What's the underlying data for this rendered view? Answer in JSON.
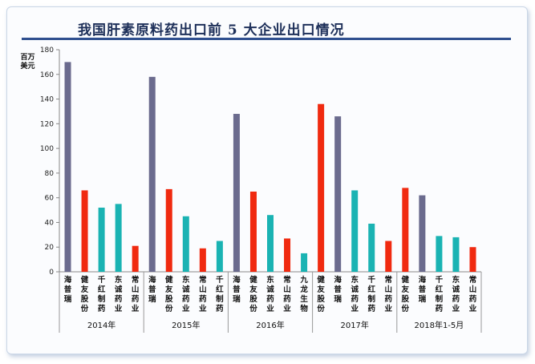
{
  "chart_data": {
    "type": "bar",
    "title": "我国肝素原料药出口前 5 大企业出口情况",
    "ylabel": "百万美元",
    "ylim": [
      0,
      180
    ],
    "yticks": [
      0,
      20,
      40,
      60,
      80,
      100,
      120,
      140,
      160,
      180
    ],
    "grid": false,
    "colors": {
      "海普瑞": "#6b6b8e",
      "健友股份": "#f02a10",
      "千红制药": "#1ab3b3",
      "东诚药业": "#1ab3b3",
      "常山药业": "#f02a10",
      "九龙生物": "#1ab3b3"
    },
    "groups": [
      {
        "label": "2014年",
        "bars": [
          {
            "name": "海普瑞",
            "value": 170
          },
          {
            "name": "健友股份",
            "value": 66
          },
          {
            "name": "千红制药",
            "value": 52
          },
          {
            "name": "东诚药业",
            "value": 55
          },
          {
            "name": "常山药业",
            "value": 21
          }
        ]
      },
      {
        "label": "2015年",
        "bars": [
          {
            "name": "海普瑞",
            "value": 158
          },
          {
            "name": "健友股份",
            "value": 67
          },
          {
            "name": "东诚药业",
            "value": 45
          },
          {
            "name": "常山药业",
            "value": 19
          },
          {
            "name": "千红制药",
            "value": 25
          }
        ]
      },
      {
        "label": "2016年",
        "bars": [
          {
            "name": "海普瑞",
            "value": 128
          },
          {
            "name": "健友股份",
            "value": 65
          },
          {
            "name": "东诚药业",
            "value": 46
          },
          {
            "name": "常山药业",
            "value": 27
          },
          {
            "name": "九龙生物",
            "value": 15
          }
        ]
      },
      {
        "label": "2017年",
        "bars": [
          {
            "name": "健友股份",
            "value": 136
          },
          {
            "name": "海普瑞",
            "value": 126
          },
          {
            "name": "东诚药业",
            "value": 66
          },
          {
            "name": "千红制药",
            "value": 39
          },
          {
            "name": "常山药业",
            "value": 25
          }
        ]
      },
      {
        "label": "2018年1-5月",
        "bars": [
          {
            "name": "健友股份",
            "value": 68
          },
          {
            "name": "海普瑞",
            "value": 62
          },
          {
            "name": "千红制药",
            "value": 29
          },
          {
            "name": "东诚药业",
            "value": 28
          },
          {
            "name": "常山药业",
            "value": 20
          }
        ]
      }
    ]
  }
}
